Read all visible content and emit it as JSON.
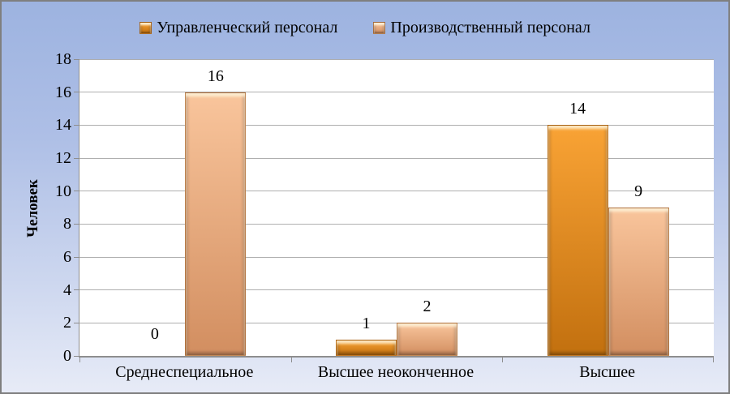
{
  "figure": {
    "border_color": "#7F7F7F",
    "background_top": "#9DB3E0",
    "background_bottom": "#E7EBF7",
    "plot_background": "#FFFFFF",
    "gridline_color": "#AFAFAF",
    "axis_color": "#8E8E8E"
  },
  "chart_data": {
    "type": "bar",
    "title": "",
    "categories": [
      "Среднеспециальное",
      "Высшее неоконченное",
      "Высшее"
    ],
    "series": [
      {
        "name": "Управленческий персонал",
        "values": [
          0,
          1,
          14
        ],
        "color_top": "#F9A335",
        "color_bottom": "#C2700F"
      },
      {
        "name": "Производственный персонал",
        "values": [
          16,
          2,
          9
        ],
        "color_top": "#F9C59C",
        "color_bottom": "#D28E60"
      }
    ],
    "xlabel": "",
    "ylabel": "Человек",
    "ylim": [
      0,
      18
    ],
    "yticks": [
      0,
      2,
      4,
      6,
      8,
      10,
      12,
      14,
      16,
      18
    ],
    "grid": true,
    "legend_position": "top",
    "data_labels": true
  }
}
